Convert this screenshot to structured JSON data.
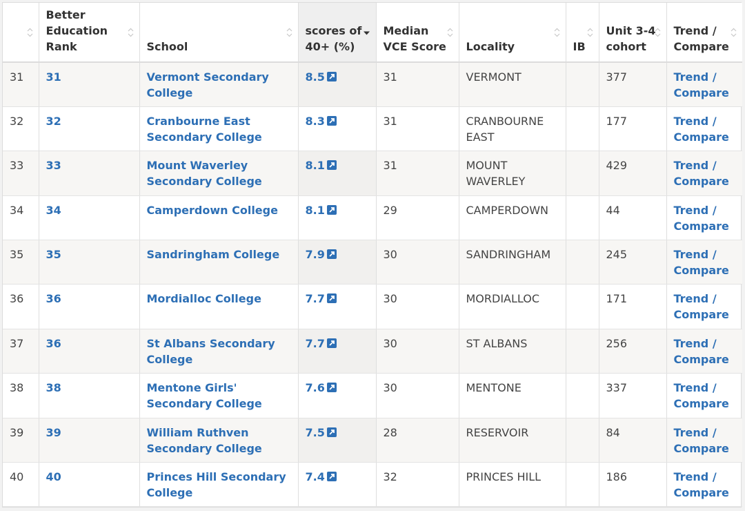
{
  "headers": {
    "col1": "",
    "rank": "Better Education Rank",
    "school": "School",
    "scores": "scores of 40+ (%)",
    "median": "Median VCE Score",
    "locality": "Locality",
    "ib": "IB",
    "cohort": "Unit 3-4 cohort",
    "trend": "Trend / Compare"
  },
  "rows": [
    {
      "n": "31",
      "rank": "31",
      "school": "Vermont Secondary College",
      "score": "8.5",
      "median": "31",
      "locality": "VERMONT",
      "ib": "",
      "cohort": "377",
      "trend": "Trend / Compare"
    },
    {
      "n": "32",
      "rank": "32",
      "school": "Cranbourne East Secondary College",
      "score": "8.3",
      "median": "31",
      "locality": "CRANBOURNE EAST",
      "ib": "",
      "cohort": "177",
      "trend": "Trend / Compare"
    },
    {
      "n": "33",
      "rank": "33",
      "school": "Mount Waverley Secondary College",
      "score": "8.1",
      "median": "31",
      "locality": "MOUNT WAVERLEY",
      "ib": "",
      "cohort": "429",
      "trend": "Trend / Compare"
    },
    {
      "n": "34",
      "rank": "34",
      "school": "Camperdown College",
      "score": "8.1",
      "median": "29",
      "locality": "CAMPERDOWN",
      "ib": "",
      "cohort": "44",
      "trend": "Trend / Compare"
    },
    {
      "n": "35",
      "rank": "35",
      "school": "Sandringham College",
      "score": "7.9",
      "median": "30",
      "locality": "SANDRINGHAM",
      "ib": "",
      "cohort": "245",
      "trend": "Trend / Compare"
    },
    {
      "n": "36",
      "rank": "36",
      "school": "Mordialloc College",
      "score": "7.7",
      "median": "30",
      "locality": "MORDIALLOC",
      "ib": "",
      "cohort": "171",
      "trend": "Trend / Compare"
    },
    {
      "n": "37",
      "rank": "36",
      "school": "St Albans Secondary College",
      "score": "7.7",
      "median": "30",
      "locality": "ST ALBANS",
      "ib": "",
      "cohort": "256",
      "trend": "Trend / Compare"
    },
    {
      "n": "38",
      "rank": "38",
      "school": "Mentone Girls' Secondary College",
      "score": "7.6",
      "median": "30",
      "locality": "MENTONE",
      "ib": "",
      "cohort": "337",
      "trend": "Trend / Compare"
    },
    {
      "n": "39",
      "rank": "39",
      "school": "William Ruthven Secondary College",
      "score": "7.5",
      "median": "28",
      "locality": "RESERVOIR",
      "ib": "",
      "cohort": "84",
      "trend": "Trend / Compare"
    },
    {
      "n": "40",
      "rank": "40",
      "school": "Princes Hill Secondary College",
      "score": "7.4",
      "median": "32",
      "locality": "PRINCES HILL",
      "ib": "",
      "cohort": "186",
      "trend": "Trend / Compare"
    }
  ],
  "icons": {
    "sort": "sort-both-icon",
    "sorted": "sort-desc-icon",
    "external": "external-link-icon"
  },
  "colors": {
    "link": "#2d6fb5",
    "row_alt": "#f7f6f4",
    "sorted_header": "#efefef"
  }
}
